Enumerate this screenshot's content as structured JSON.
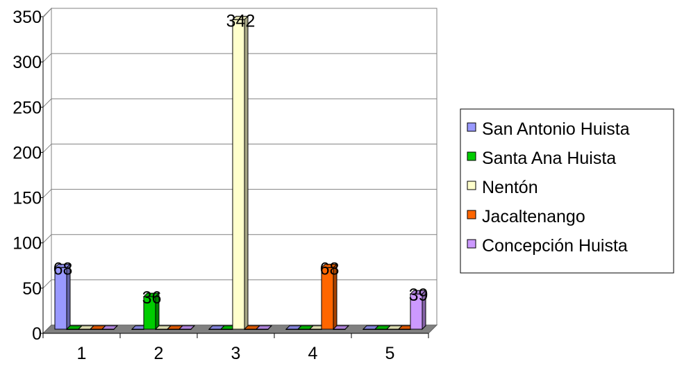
{
  "chart_data": {
    "type": "bar",
    "categories": [
      "1",
      "2",
      "3",
      "4",
      "5"
    ],
    "series": [
      {
        "name": "San Antonio Huista",
        "color": "#9999ff",
        "values": [
          68,
          0,
          0,
          0,
          0
        ]
      },
      {
        "name": "Santa Ana Huista",
        "color": "#00cc00",
        "values": [
          0,
          36,
          0,
          0,
          0
        ]
      },
      {
        "name": "Nentón",
        "color": "#ffffcc",
        "values": [
          0,
          0,
          342,
          0,
          0
        ]
      },
      {
        "name": "Jacaltenango",
        "color": "#ff6600",
        "values": [
          0,
          0,
          0,
          68,
          0
        ]
      },
      {
        "name": "Concepción Huista",
        "color": "#cc99ff",
        "values": [
          0,
          0,
          0,
          0,
          39
        ]
      }
    ],
    "data_labels": [
      {
        "category": "1",
        "series": "San Antonio Huista",
        "text": "68"
      },
      {
        "category": "2",
        "series": "Santa Ana Huista",
        "text": "36"
      },
      {
        "category": "3",
        "series": "Nentón",
        "text": "342"
      },
      {
        "category": "4",
        "series": "Jacaltenango",
        "text": "68"
      },
      {
        "category": "5",
        "series": "Concepción Huista",
        "text": "39"
      }
    ],
    "y_ticks": [
      "0",
      "50",
      "100",
      "150",
      "200",
      "250",
      "300",
      "350"
    ],
    "ylim": [
      0,
      350
    ],
    "grid": true,
    "legend_position": "right",
    "style": "3d-clustered-column"
  }
}
